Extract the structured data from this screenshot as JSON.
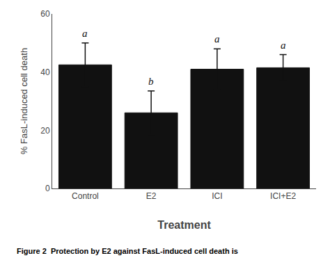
{
  "chart_data": {
    "type": "bar",
    "categories": [
      "Control",
      "E2",
      "ICI",
      "ICI+E2"
    ],
    "values": [
      42.5,
      26.0,
      41.0,
      41.5
    ],
    "errors": [
      7.5,
      7.5,
      7.0,
      4.5
    ],
    "annotations": [
      "a",
      "b",
      "a",
      "a"
    ],
    "color": "#111111",
    "ylim": [
      0,
      60
    ],
    "yticks": [
      0,
      20,
      40,
      60
    ],
    "ylabel": "% FasL-induced cell death",
    "xlabel": "Treatment",
    "caption": "Figure 2  Protection by E2 against FasL-induced cell death is",
    "grid": false
  }
}
